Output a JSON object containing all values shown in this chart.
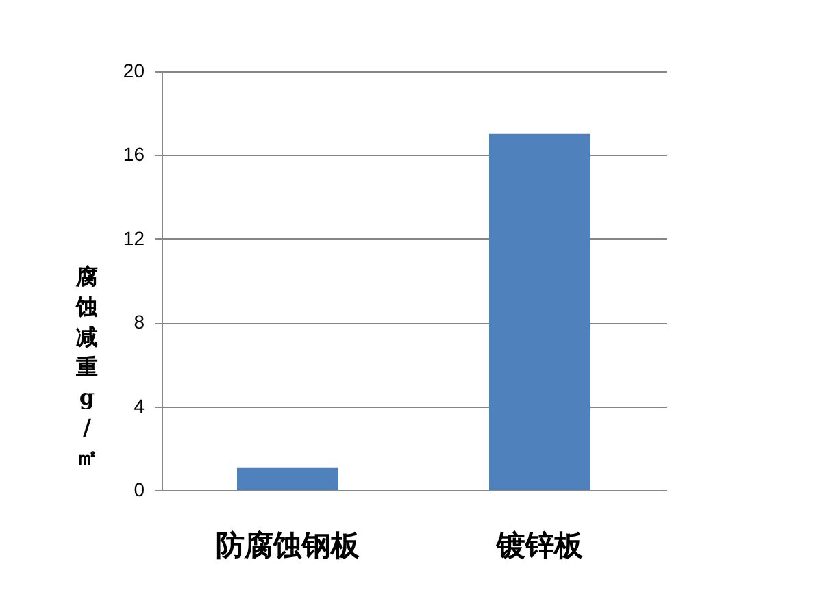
{
  "chart_data": {
    "type": "bar",
    "categories": [
      "防腐蚀钢板",
      "镀锌板"
    ],
    "values": [
      1.05,
      17
    ],
    "color": "#4f81bd",
    "ylabel": "腐蚀减重g/㎡",
    "ylim": [
      0,
      20
    ],
    "yticks": [
      0,
      4,
      8,
      12,
      16,
      20
    ],
    "grid": "y"
  }
}
